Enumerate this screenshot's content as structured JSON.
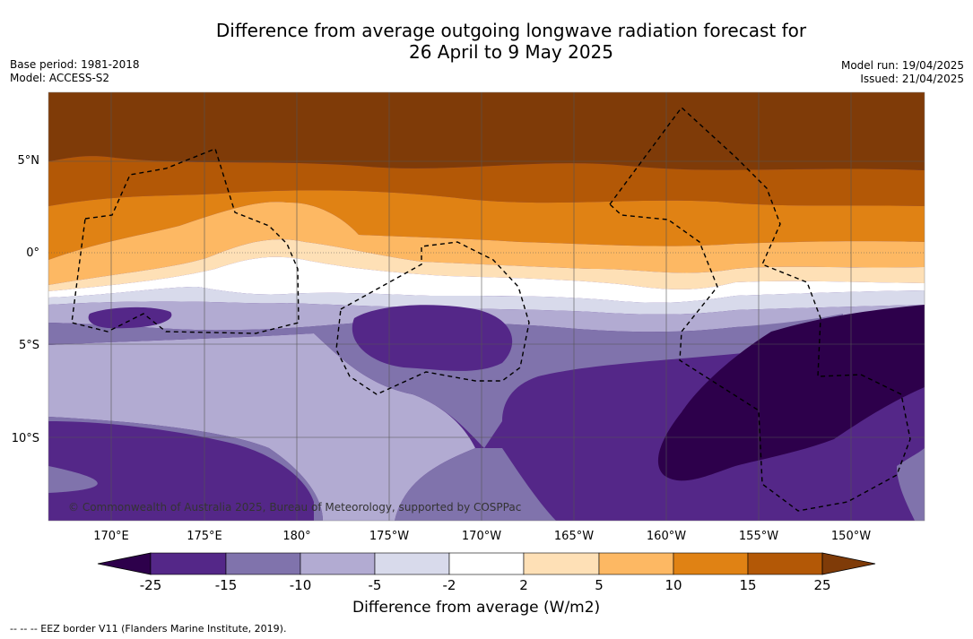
{
  "title_line1": "Difference from average outgoing longwave radiation forecast for",
  "title_line2": "26 April to 9 May 2025",
  "base_period": "Base period: 1981-2018",
  "model": "Model: ACCESS-S2",
  "model_run": "Model run: 19/04/2025",
  "issued": "Issued: 21/04/2025",
  "copyright": "© Commonwealth of Australia 2025, Bureau of Meteorology, supported by COSPPac",
  "lat_labels": [
    "5°N",
    "0°",
    "5°S",
    "10°S"
  ],
  "lon_labels": [
    "170°E",
    "175°E",
    "180°",
    "175°W",
    "170°W",
    "165°W",
    "160°W",
    "155°W",
    "150°W"
  ],
  "colorbar": {
    "title": "Difference from average (W/m2)",
    "ticks": [
      "-25",
      "-15",
      "-10",
      "-5",
      "-2",
      "2",
      "5",
      "10",
      "15",
      "25"
    ],
    "colors": [
      "#2d004b",
      "#542788",
      "#8073ac",
      "#b2abd2",
      "#d8daeb",
      "#ffffff",
      "#fee0b6",
      "#fdb863",
      "#e08214",
      "#b35806",
      "#7f3b08"
    ]
  },
  "footnote": "-- -- -- EEZ border V11 (Flanders Marine Institute, 2019)."
}
